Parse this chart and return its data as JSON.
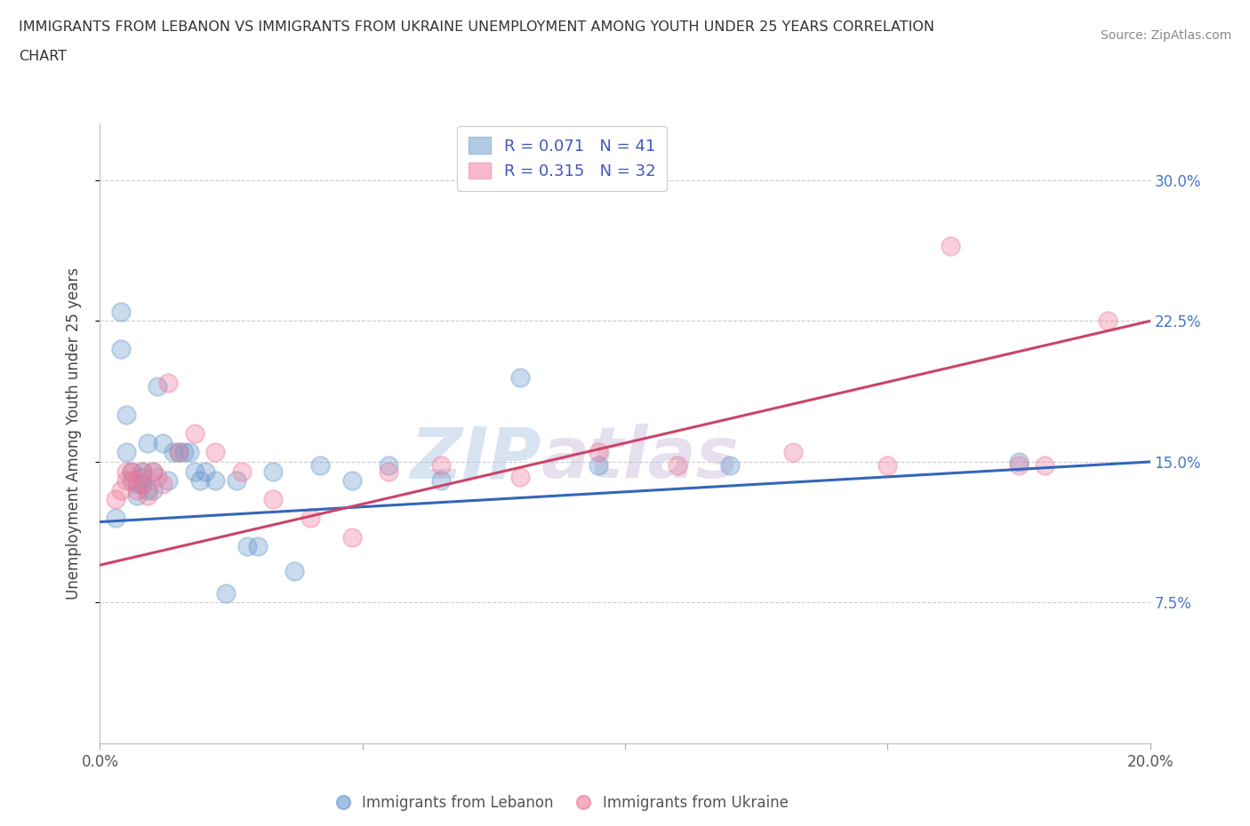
{
  "title_line1": "IMMIGRANTS FROM LEBANON VS IMMIGRANTS FROM UKRAINE UNEMPLOYMENT AMONG YOUTH UNDER 25 YEARS CORRELATION",
  "title_line2": "CHART",
  "source": "Source: ZipAtlas.com",
  "ylabel": "Unemployment Among Youth under 25 years",
  "xlim": [
    0,
    0.2
  ],
  "ylim": [
    0,
    0.33
  ],
  "xticks": [
    0.0,
    0.05,
    0.1,
    0.15,
    0.2
  ],
  "xticklabels": [
    "0.0%",
    "",
    "",
    "",
    "20.0%"
  ],
  "yticks": [
    0.075,
    0.15,
    0.225,
    0.3
  ],
  "yticklabels": [
    "7.5%",
    "15.0%",
    "22.5%",
    "30.0%"
  ],
  "lebanon_color": "#6699cc",
  "ukraine_color": "#ee7799",
  "lebanon_label": "Immigrants from Lebanon",
  "ukraine_label": "Immigrants from Ukraine",
  "R_lebanon": 0.071,
  "N_lebanon": 41,
  "R_ukraine": 0.315,
  "N_ukraine": 32,
  "watermark_zip": "ZIP",
  "watermark_atlas": "atlas",
  "lebanon_x": [
    0.003,
    0.004,
    0.004,
    0.005,
    0.005,
    0.006,
    0.006,
    0.007,
    0.007,
    0.008,
    0.008,
    0.008,
    0.009,
    0.009,
    0.01,
    0.01,
    0.011,
    0.012,
    0.013,
    0.014,
    0.015,
    0.016,
    0.017,
    0.018,
    0.019,
    0.02,
    0.022,
    0.024,
    0.026,
    0.028,
    0.03,
    0.033,
    0.037,
    0.042,
    0.048,
    0.055,
    0.065,
    0.08,
    0.095,
    0.12,
    0.175
  ],
  "lebanon_y": [
    0.12,
    0.23,
    0.21,
    0.175,
    0.155,
    0.145,
    0.14,
    0.138,
    0.132,
    0.145,
    0.142,
    0.138,
    0.16,
    0.135,
    0.145,
    0.135,
    0.19,
    0.16,
    0.14,
    0.155,
    0.155,
    0.155,
    0.155,
    0.145,
    0.14,
    0.145,
    0.14,
    0.08,
    0.14,
    0.105,
    0.105,
    0.145,
    0.092,
    0.148,
    0.14,
    0.148,
    0.14,
    0.195,
    0.148,
    0.148,
    0.15
  ],
  "ukraine_x": [
    0.003,
    0.004,
    0.005,
    0.005,
    0.006,
    0.007,
    0.007,
    0.008,
    0.008,
    0.009,
    0.01,
    0.011,
    0.012,
    0.013,
    0.015,
    0.018,
    0.022,
    0.027,
    0.033,
    0.04,
    0.048,
    0.055,
    0.065,
    0.08,
    0.095,
    0.11,
    0.132,
    0.15,
    0.162,
    0.175,
    0.18,
    0.192
  ],
  "ukraine_y": [
    0.13,
    0.135,
    0.145,
    0.14,
    0.145,
    0.14,
    0.135,
    0.145,
    0.138,
    0.132,
    0.145,
    0.142,
    0.138,
    0.192,
    0.155,
    0.165,
    0.155,
    0.145,
    0.13,
    0.12,
    0.11,
    0.145,
    0.148,
    0.142,
    0.155,
    0.148,
    0.155,
    0.148,
    0.265,
    0.148,
    0.148,
    0.225
  ],
  "leb_trend_y0": 0.118,
  "leb_trend_y1": 0.15,
  "ukr_trend_y0": 0.095,
  "ukr_trend_y1": 0.225
}
